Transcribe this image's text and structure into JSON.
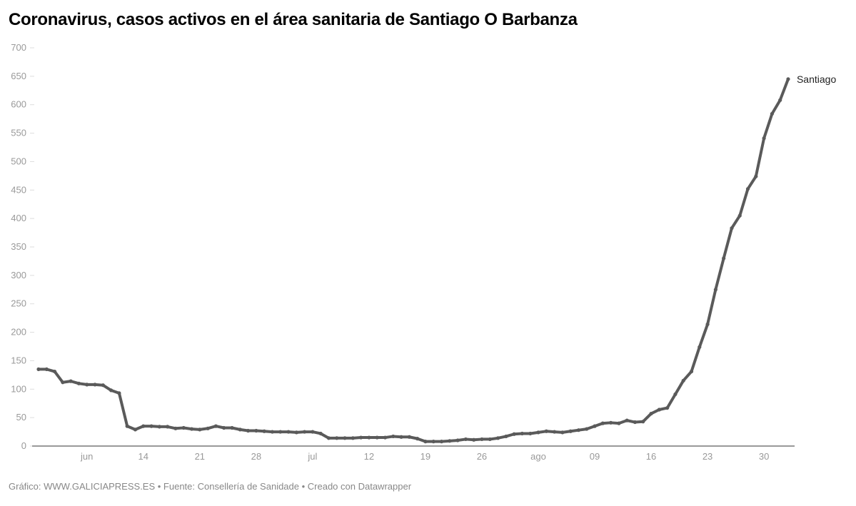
{
  "header": {
    "title": "Coronavirus, casos activos en el área sanitaria de Santiago O Barbanza"
  },
  "footer": {
    "text": "Gráfico: WWW.GALICIAPRESS.ES • Fuente: Consellería de Sanidade • Creado con Datawrapper"
  },
  "chart_data": {
    "type": "line",
    "title": "Coronavirus, casos activos en el área sanitaria de Santiago O Barbanza",
    "xlabel": "",
    "ylabel": "",
    "ylim": [
      0,
      700
    ],
    "yticks": [
      0,
      50,
      100,
      150,
      200,
      250,
      300,
      350,
      400,
      450,
      500,
      550,
      600,
      650,
      700
    ],
    "xticks": [
      {
        "date": "2020-06-07",
        "label": "jun"
      },
      {
        "date": "2020-06-14",
        "label": "14"
      },
      {
        "date": "2020-06-21",
        "label": "21"
      },
      {
        "date": "2020-06-28",
        "label": "28"
      },
      {
        "date": "2020-07-05",
        "label": "jul"
      },
      {
        "date": "2020-07-12",
        "label": "12"
      },
      {
        "date": "2020-07-19",
        "label": "19"
      },
      {
        "date": "2020-07-26",
        "label": "26"
      },
      {
        "date": "2020-08-02",
        "label": "ago"
      },
      {
        "date": "2020-08-09",
        "label": "09"
      },
      {
        "date": "2020-08-16",
        "label": "16"
      },
      {
        "date": "2020-08-23",
        "label": "23"
      },
      {
        "date": "2020-08-30",
        "label": "30"
      }
    ],
    "grid": false,
    "line_color": "#5a5a5a",
    "x_start": "2020-06-01",
    "x_end": "2020-09-02",
    "series": [
      {
        "name": "Santiago",
        "values": [
          135,
          135,
          131,
          112,
          114,
          110,
          108,
          108,
          107,
          98,
          93,
          35,
          29,
          35,
          35,
          34,
          34,
          31,
          32,
          30,
          29,
          31,
          35,
          32,
          32,
          29,
          27,
          27,
          26,
          25,
          25,
          25,
          24,
          25,
          25,
          22,
          14,
          14,
          14,
          14,
          15,
          15,
          15,
          15,
          17,
          16,
          16,
          13,
          8,
          8,
          8,
          9,
          10,
          12,
          11,
          12,
          12,
          14,
          17,
          21,
          22,
          22,
          24,
          26,
          25,
          24,
          26,
          28,
          30,
          35,
          40,
          41,
          40,
          45,
          42,
          43,
          57,
          64,
          67,
          91,
          115,
          131,
          174,
          214,
          275,
          330,
          383,
          405,
          452,
          474,
          541,
          584,
          608,
          645
        ]
      }
    ]
  }
}
